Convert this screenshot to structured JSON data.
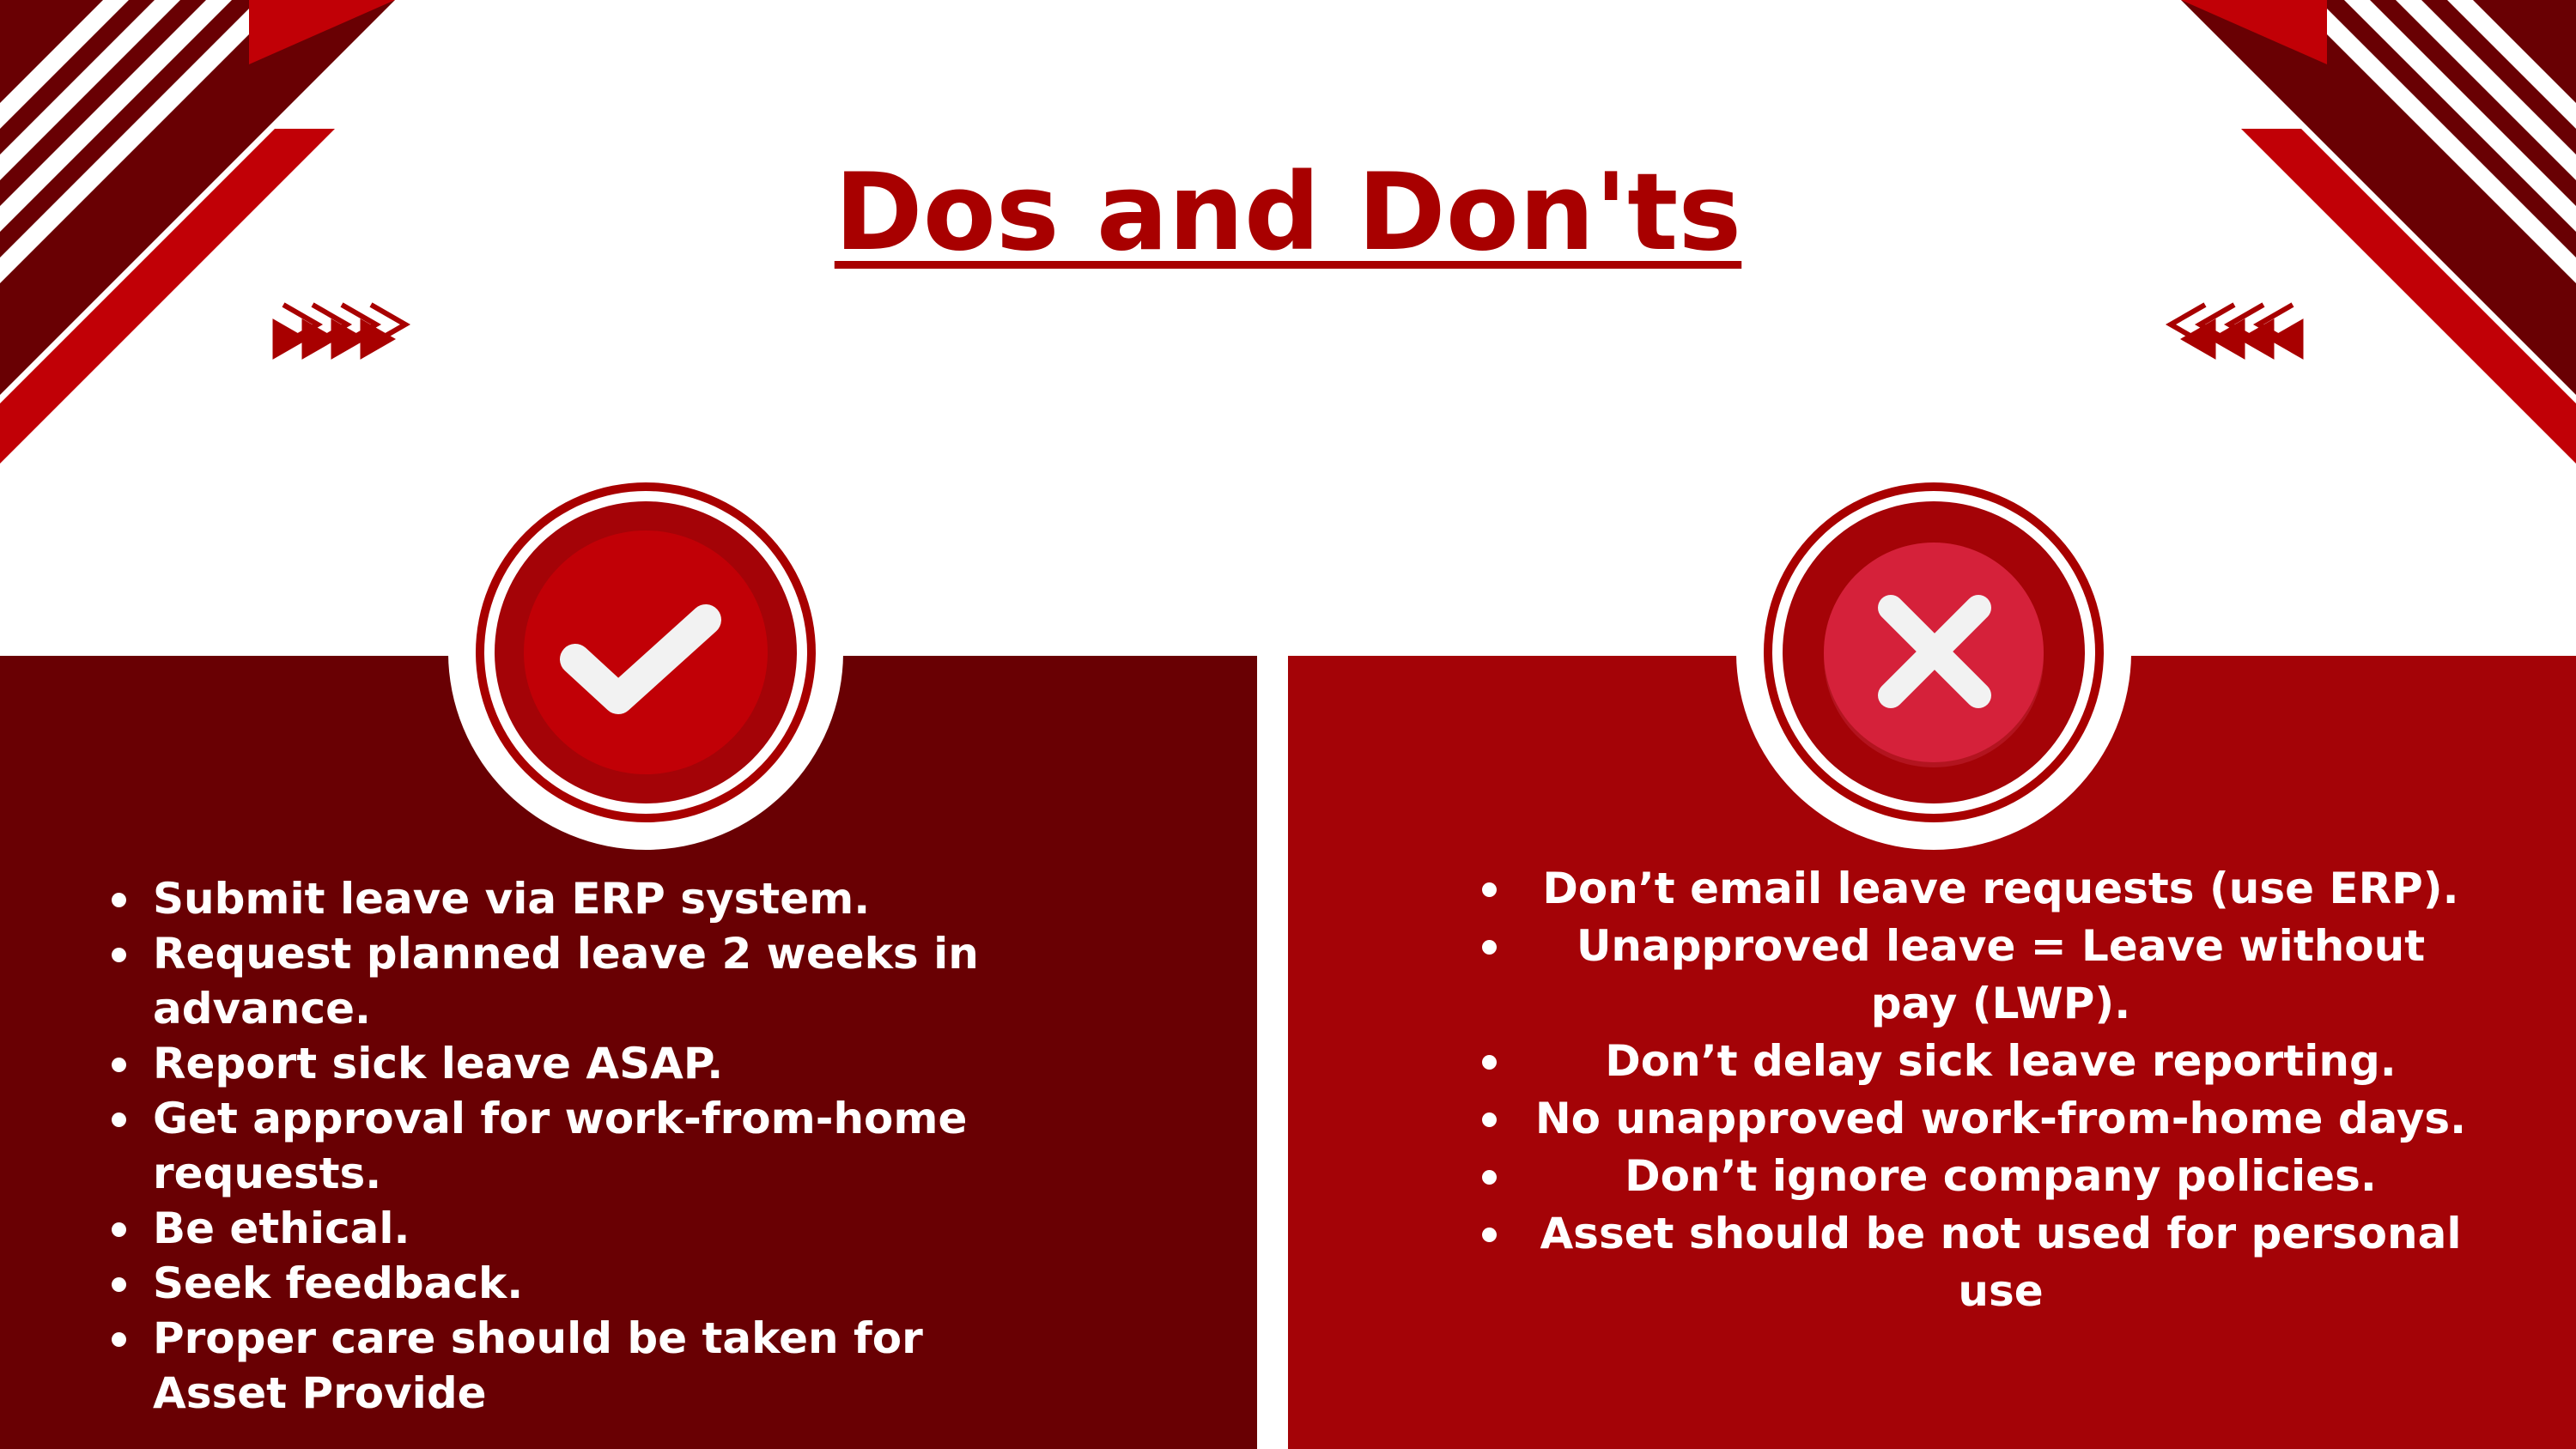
{
  "title": "Dos and Don'ts",
  "colors": {
    "primary_red": "#a80000",
    "dark_maroon": "#690003",
    "panel_red": "#a40307",
    "accent_red": "#c10006",
    "white": "#ffffff"
  },
  "dos": {
    "icon": "checkmark-icon",
    "items": [
      "Submit leave via ERP system.",
      "Request planned leave 2 weeks in advance.",
      "Report sick leave ASAP.",
      "Get approval for work-from-home requests.",
      "Be ethical.",
      "Seek feedback.",
      "Proper care should be taken for Asset Provide"
    ]
  },
  "donts": {
    "icon": "cross-icon",
    "items": [
      "Don’t email leave requests (use ERP).",
      "Unapproved leave = Leave without pay (LWP).",
      "Don’t delay sick leave reporting.",
      "No unapproved work-from-home days.",
      "Don’t ignore company policies.",
      "Asset should be not used for personal  use"
    ]
  },
  "decorations": {
    "left_arrows_icon": "chevron-right-arrows-icon",
    "right_arrows_icon": "chevron-left-arrows-icon"
  }
}
